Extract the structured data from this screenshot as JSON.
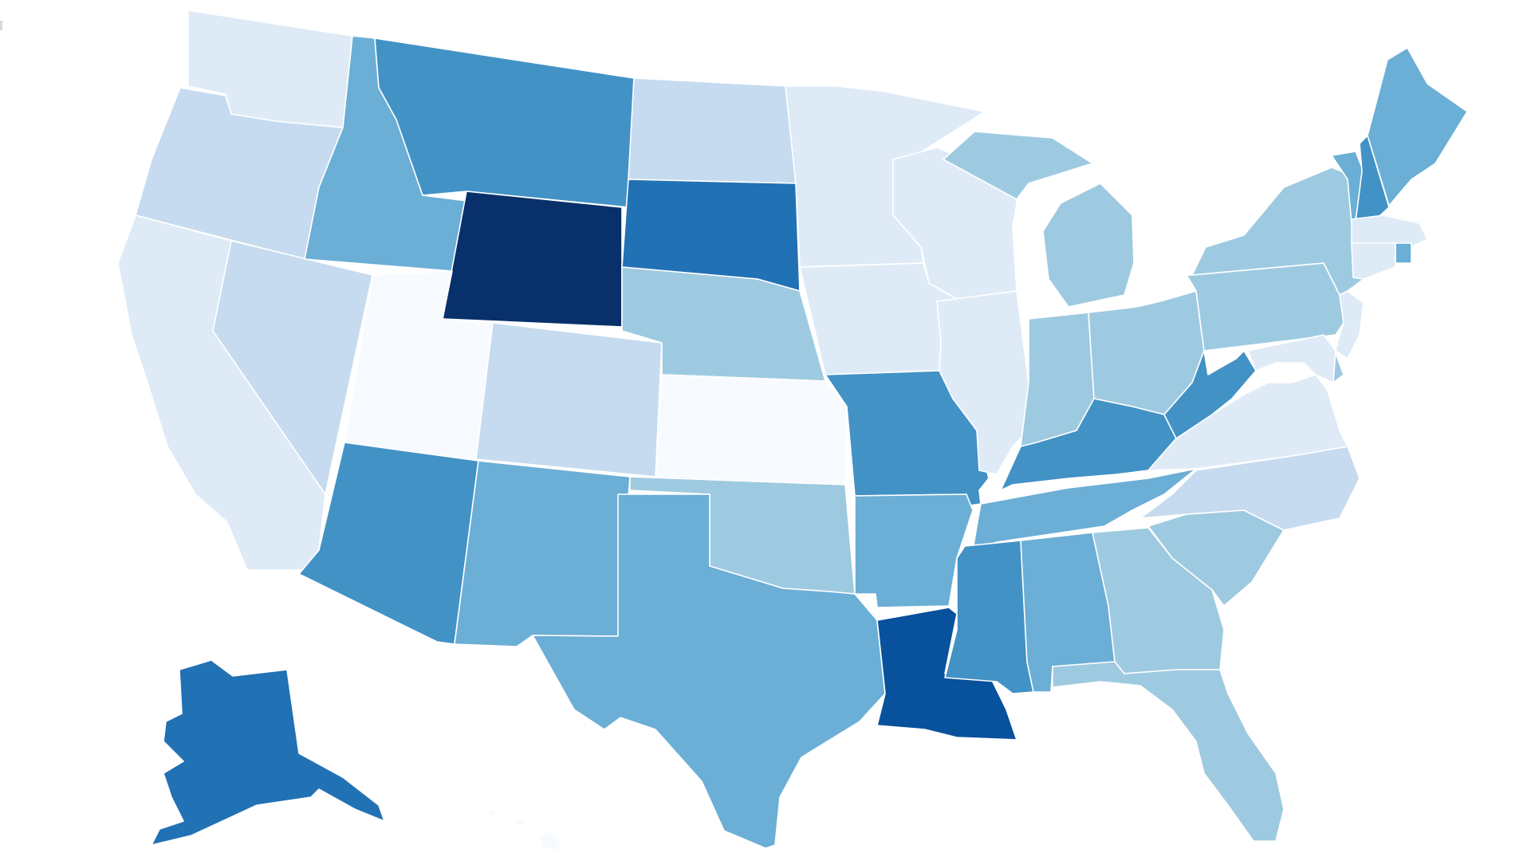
{
  "map_data": {
    "type": "choropleth",
    "region": "United States",
    "color_scale": [
      "#f7fbff",
      "#deebf7",
      "#c6dbef",
      "#9ecae1",
      "#6baed6",
      "#4292c6",
      "#2171b5",
      "#08519c",
      "#08306b"
    ],
    "states": [
      {
        "code": "WA",
        "level": 1
      },
      {
        "code": "OR",
        "level": 2
      },
      {
        "code": "CA",
        "level": 1
      },
      {
        "code": "NV",
        "level": 2
      },
      {
        "code": "ID",
        "level": 4
      },
      {
        "code": "MT",
        "level": 5
      },
      {
        "code": "WY",
        "level": 8
      },
      {
        "code": "UT",
        "level": 0
      },
      {
        "code": "CO",
        "level": 2
      },
      {
        "code": "AZ",
        "level": 5
      },
      {
        "code": "NM",
        "level": 4
      },
      {
        "code": "ND",
        "level": 2
      },
      {
        "code": "SD",
        "level": 6
      },
      {
        "code": "NE",
        "level": 3
      },
      {
        "code": "KS",
        "level": 0
      },
      {
        "code": "OK",
        "level": 3
      },
      {
        "code": "TX",
        "level": 4
      },
      {
        "code": "MN",
        "level": 1
      },
      {
        "code": "IA",
        "level": 1
      },
      {
        "code": "MO",
        "level": 5
      },
      {
        "code": "AR",
        "level": 4
      },
      {
        "code": "LA",
        "level": 7
      },
      {
        "code": "WI",
        "level": 1
      },
      {
        "code": "IL",
        "level": 1
      },
      {
        "code": "MI",
        "level": 3
      },
      {
        "code": "IN",
        "level": 3
      },
      {
        "code": "OH",
        "level": 3
      },
      {
        "code": "KY",
        "level": 5
      },
      {
        "code": "TN",
        "level": 4
      },
      {
        "code": "MS",
        "level": 5
      },
      {
        "code": "AL",
        "level": 4
      },
      {
        "code": "GA",
        "level": 3
      },
      {
        "code": "FL",
        "level": 3
      },
      {
        "code": "SC",
        "level": 3
      },
      {
        "code": "NC",
        "level": 2
      },
      {
        "code": "VA",
        "level": 1
      },
      {
        "code": "WV",
        "level": 5
      },
      {
        "code": "PA",
        "level": 3
      },
      {
        "code": "NY",
        "level": 3
      },
      {
        "code": "VT",
        "level": 4
      },
      {
        "code": "NH",
        "level": 5
      },
      {
        "code": "ME",
        "level": 4
      },
      {
        "code": "MA",
        "level": 1
      },
      {
        "code": "RI",
        "level": 4
      },
      {
        "code": "CT",
        "level": 1
      },
      {
        "code": "NJ",
        "level": 1
      },
      {
        "code": "DE",
        "level": 3
      },
      {
        "code": "MD",
        "level": 1
      },
      {
        "code": "AK",
        "level": 6
      },
      {
        "code": "HI",
        "level": 0
      }
    ]
  }
}
